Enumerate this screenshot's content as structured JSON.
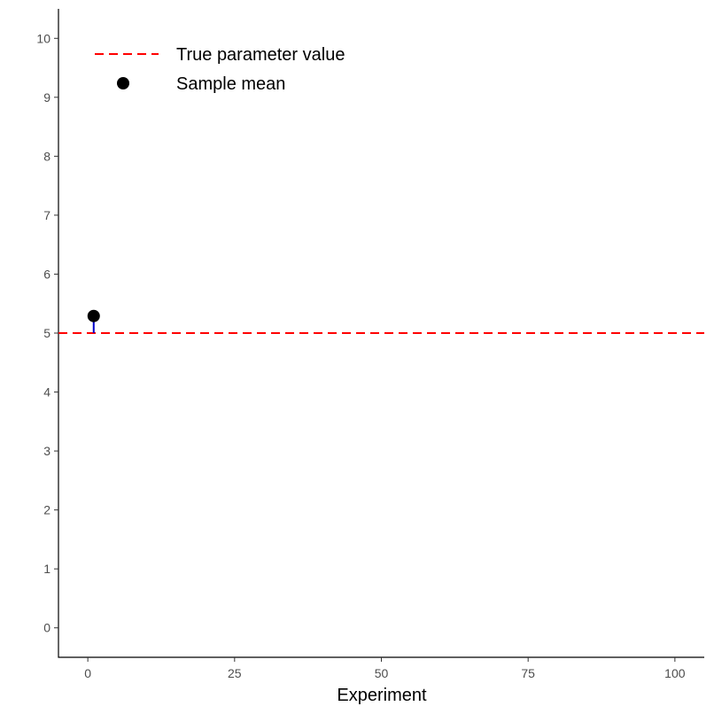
{
  "chart_data": {
    "type": "scatter",
    "title": "",
    "xlabel": "Experiment",
    "ylabel": "",
    "xlim": [
      -5,
      105
    ],
    "ylim": [
      -0.5,
      10.5
    ],
    "x_ticks": [
      0,
      25,
      50,
      75,
      100
    ],
    "y_ticks": [
      0,
      1,
      2,
      3,
      4,
      5,
      6,
      7,
      8,
      9,
      10
    ],
    "true_value": 5,
    "points": [
      {
        "x": 1,
        "y": 5.29
      }
    ],
    "deviation_segments": [
      {
        "x": 1,
        "y_from": 5,
        "y_to": 5.29
      }
    ],
    "legend": {
      "position": "top-left",
      "items": [
        {
          "label": "True parameter value",
          "kind": "dashed-line",
          "color": "#ff0000"
        },
        {
          "label": "Sample mean",
          "kind": "point",
          "color": "#000000"
        }
      ]
    },
    "colors": {
      "true_line": "#ff0000",
      "point": "#000000",
      "segment": "#0000cc",
      "axis": "#000000",
      "tick_text": "#4d4d4d"
    },
    "grid": false
  }
}
